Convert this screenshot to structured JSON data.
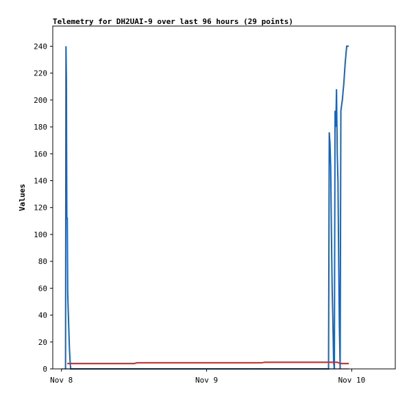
{
  "chart_data": {
    "type": "line",
    "title": "Telemetry for DH2UAI-9 over last 96 hours (29 points)",
    "xlabel": "",
    "ylabel": "Values",
    "ylim": [
      0,
      255
    ],
    "xlim": [
      -0.06,
      2.3
    ],
    "yticks": [
      0,
      20,
      40,
      60,
      80,
      100,
      120,
      140,
      160,
      180,
      200,
      220,
      240
    ],
    "xticks": [
      {
        "value": 0,
        "label": "Nov 8"
      },
      {
        "value": 1,
        "label": "Nov 9"
      },
      {
        "value": 2,
        "label": "Nov 10"
      }
    ],
    "grid": false,
    "legend": "none",
    "series": [
      {
        "color": "#1565c0",
        "x": [
          0.028,
          0.031,
          0.034,
          0.037,
          0.04,
          0.043,
          0.046,
          0.049,
          0.052,
          0.055,
          0.058,
          0.061,
          0.064,
          0.067,
          0.07,
          0.075,
          1.84,
          1.845,
          1.85,
          1.855,
          1.86,
          1.865,
          1.87,
          1.875,
          1.88,
          1.885,
          1.89,
          1.895,
          1.9,
          1.905,
          1.91,
          1.915,
          1.92,
          1.925,
          1.93,
          1.935,
          1.94,
          1.945,
          1.95,
          1.955,
          1.96,
          1.965,
          1.97,
          1.975,
          1.98
        ],
        "values": [
          0,
          240,
          216,
          112,
          112,
          57,
          45,
          35,
          25,
          15,
          8,
          3,
          0,
          0,
          0,
          0,
          0,
          176,
          168,
          150,
          100,
          60,
          35,
          5,
          0,
          192,
          180,
          208,
          160,
          140,
          80,
          30,
          0,
          192,
          196,
          200,
          206,
          212,
          220,
          228,
          234,
          240,
          240,
          240,
          240
        ]
      },
      {
        "color": "#e02020",
        "x": [
          0.04,
          0.5,
          0.52,
          1.38,
          1.4,
          1.9,
          1.92,
          1.98
        ],
        "values": [
          4,
          4,
          4.5,
          4.5,
          5,
          5,
          4,
          4
        ]
      },
      {
        "color": "#000000",
        "x": [
          0.0,
          1.98
        ],
        "values": [
          0,
          0
        ]
      }
    ]
  }
}
